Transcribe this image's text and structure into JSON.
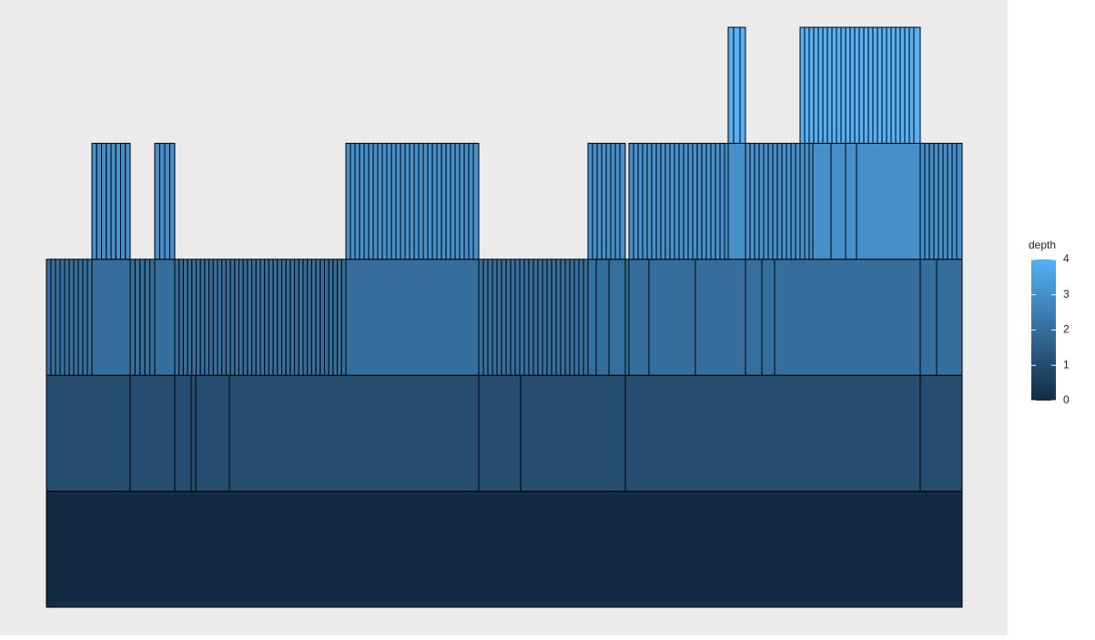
{
  "chart_data": {
    "type": "partition",
    "xlim": [
      0,
      1006
    ],
    "color_low": "#132B43",
    "color_high": "#56B1F7",
    "colorbar": {
      "title": "depth",
      "limits": [
        0,
        4
      ],
      "ticks": [
        0,
        1,
        2,
        3,
        4
      ]
    },
    "levels": [
      {
        "depth": 0,
        "segments": [
          [
            0,
            1006
          ]
        ]
      },
      {
        "depth": 1,
        "segments": [
          [
            0,
            92
          ],
          [
            92,
            141
          ],
          [
            141,
            159
          ],
          [
            159,
            164
          ],
          [
            164,
            201
          ],
          [
            201,
            475
          ],
          [
            475,
            521
          ],
          [
            521,
            636
          ],
          [
            636,
            960
          ],
          [
            960,
            1006
          ]
        ]
      },
      {
        "depth": 2,
        "segments": [
          [
            0,
            5
          ],
          [
            5,
            10
          ],
          [
            10,
            15
          ],
          [
            15,
            20
          ],
          [
            20,
            25
          ],
          [
            25,
            30
          ],
          [
            30,
            35
          ],
          [
            35,
            40
          ],
          [
            40,
            45
          ],
          [
            45,
            50
          ],
          [
            50,
            92
          ],
          [
            92,
            97.4
          ],
          [
            97.4,
            102.8
          ],
          [
            102.8,
            108.2
          ],
          [
            108.2,
            113.6
          ],
          [
            113.6,
            119
          ],
          [
            119,
            141
          ],
          [
            141,
            145.7
          ],
          [
            145.7,
            150.4
          ],
          [
            150.4,
            155.1
          ],
          [
            155.1,
            159.8
          ],
          [
            159.8,
            164.5
          ],
          [
            164.5,
            169.2
          ],
          [
            169.2,
            173.9
          ],
          [
            173.9,
            178.6
          ],
          [
            178.6,
            183.3
          ],
          [
            183.3,
            188
          ],
          [
            188,
            192.7
          ],
          [
            192.7,
            197.4
          ],
          [
            197.4,
            202.1
          ],
          [
            202.1,
            206.8
          ],
          [
            206.8,
            211.5
          ],
          [
            211.5,
            216.2
          ],
          [
            216.2,
            220.9
          ],
          [
            220.9,
            225.6
          ],
          [
            225.6,
            230.3
          ],
          [
            230.3,
            235
          ],
          [
            235,
            239.7
          ],
          [
            239.7,
            244.4
          ],
          [
            244.4,
            249.1
          ],
          [
            249.1,
            253.8
          ],
          [
            253.8,
            258.5
          ],
          [
            258.5,
            263.2
          ],
          [
            263.2,
            267.9
          ],
          [
            267.9,
            272.6
          ],
          [
            272.6,
            277.3
          ],
          [
            277.3,
            282
          ],
          [
            282,
            286.7
          ],
          [
            286.7,
            291.4
          ],
          [
            291.4,
            296.1
          ],
          [
            296.1,
            300.8
          ],
          [
            300.8,
            305.5
          ],
          [
            305.5,
            310.2
          ],
          [
            310.2,
            314.9
          ],
          [
            314.9,
            319.6
          ],
          [
            319.6,
            324.3
          ],
          [
            324.3,
            329
          ],
          [
            329,
            475
          ],
          [
            475,
            480
          ],
          [
            480,
            485
          ],
          [
            485,
            490
          ],
          [
            490,
            495
          ],
          [
            495,
            500
          ],
          [
            500,
            505
          ],
          [
            505,
            510
          ],
          [
            510,
            515
          ],
          [
            515,
            520
          ],
          [
            520,
            525
          ],
          [
            525,
            530
          ],
          [
            530,
            535
          ],
          [
            535,
            540
          ],
          [
            540,
            545
          ],
          [
            545,
            550
          ],
          [
            550,
            555
          ],
          [
            555,
            560
          ],
          [
            560,
            565
          ],
          [
            565,
            570
          ],
          [
            570,
            575
          ],
          [
            575,
            580
          ],
          [
            580,
            585
          ],
          [
            585,
            590
          ],
          [
            590,
            595
          ],
          [
            595,
            604
          ],
          [
            604,
            618
          ],
          [
            618,
            636
          ],
          [
            636,
            640
          ],
          [
            640,
            662
          ],
          [
            662,
            713
          ],
          [
            713,
            768
          ],
          [
            768,
            786
          ],
          [
            786,
            800
          ],
          [
            800,
            960
          ],
          [
            960,
            978
          ],
          [
            978,
            1006
          ]
        ]
      },
      {
        "depth": 3,
        "segments": [
          [
            50,
            55.25
          ],
          [
            55.25,
            60.5
          ],
          [
            60.5,
            65.75
          ],
          [
            65.75,
            71
          ],
          [
            71,
            76.25
          ],
          [
            76.25,
            81.5
          ],
          [
            81.5,
            86.75
          ],
          [
            86.75,
            92
          ],
          [
            119,
            124.5
          ],
          [
            124.5,
            130
          ],
          [
            130,
            135.5
          ],
          [
            135.5,
            141
          ],
          [
            329,
            334
          ],
          [
            334,
            339
          ],
          [
            339,
            344
          ],
          [
            344,
            349
          ],
          [
            349,
            354
          ],
          [
            354,
            359
          ],
          [
            359,
            364
          ],
          [
            364,
            369
          ],
          [
            369,
            374
          ],
          [
            374,
            379
          ],
          [
            379,
            384
          ],
          [
            384,
            389
          ],
          [
            389,
            394
          ],
          [
            394,
            399
          ],
          [
            399,
            404
          ],
          [
            404,
            409
          ],
          [
            409,
            414
          ],
          [
            414,
            419
          ],
          [
            419,
            424
          ],
          [
            424,
            429
          ],
          [
            429,
            434
          ],
          [
            434,
            439
          ],
          [
            439,
            444
          ],
          [
            444,
            449
          ],
          [
            449,
            454
          ],
          [
            454,
            459
          ],
          [
            459,
            464
          ],
          [
            464,
            469
          ],
          [
            469,
            475
          ],
          [
            595,
            600
          ],
          [
            600,
            605
          ],
          [
            605,
            610
          ],
          [
            610,
            615
          ],
          [
            615,
            620
          ],
          [
            620,
            625
          ],
          [
            625,
            630
          ],
          [
            630,
            636
          ],
          [
            640,
            645
          ],
          [
            645,
            650
          ],
          [
            650,
            655
          ],
          [
            655,
            660
          ],
          [
            660,
            665
          ],
          [
            665,
            670
          ],
          [
            670,
            675
          ],
          [
            675,
            680
          ],
          [
            680,
            685
          ],
          [
            685,
            690
          ],
          [
            690,
            695
          ],
          [
            695,
            700
          ],
          [
            700,
            705
          ],
          [
            705,
            710
          ],
          [
            710,
            715
          ],
          [
            715,
            720
          ],
          [
            720,
            725
          ],
          [
            725,
            730
          ],
          [
            730,
            735
          ],
          [
            735,
            740
          ],
          [
            740,
            745
          ],
          [
            745,
            749
          ],
          [
            749,
            768
          ],
          [
            768,
            773
          ],
          [
            773,
            778
          ],
          [
            778,
            783
          ],
          [
            783,
            788
          ],
          [
            788,
            793
          ],
          [
            793,
            798
          ],
          [
            798,
            803
          ],
          [
            803,
            808
          ],
          [
            808,
            813
          ],
          [
            813,
            818
          ],
          [
            818,
            823
          ],
          [
            823,
            828
          ],
          [
            828,
            833
          ],
          [
            833,
            838
          ],
          [
            838,
            842
          ],
          [
            842,
            862
          ],
          [
            862,
            878
          ],
          [
            878,
            890
          ],
          [
            890,
            960
          ],
          [
            960,
            965
          ],
          [
            965,
            970
          ],
          [
            970,
            975
          ],
          [
            975,
            980
          ],
          [
            980,
            985
          ],
          [
            985,
            990
          ],
          [
            990,
            995
          ],
          [
            995,
            1000
          ],
          [
            1000,
            1006
          ]
        ]
      },
      {
        "depth": 4,
        "segments": [
          [
            749,
            755
          ],
          [
            755,
            762
          ],
          [
            762,
            768
          ],
          [
            828,
            833
          ],
          [
            833,
            838
          ],
          [
            838,
            843
          ],
          [
            843,
            848
          ],
          [
            848,
            853
          ],
          [
            853,
            858
          ],
          [
            858,
            863
          ],
          [
            863,
            868
          ],
          [
            868,
            873
          ],
          [
            873,
            878
          ],
          [
            878,
            883
          ],
          [
            883,
            888
          ],
          [
            888,
            893
          ],
          [
            893,
            898
          ],
          [
            898,
            903
          ],
          [
            903,
            908
          ],
          [
            908,
            913
          ],
          [
            913,
            918
          ],
          [
            918,
            923
          ],
          [
            923,
            928
          ],
          [
            928,
            933
          ],
          [
            933,
            938
          ],
          [
            938,
            943
          ],
          [
            943,
            948
          ],
          [
            948,
            953
          ],
          [
            953,
            960
          ]
        ]
      }
    ]
  }
}
